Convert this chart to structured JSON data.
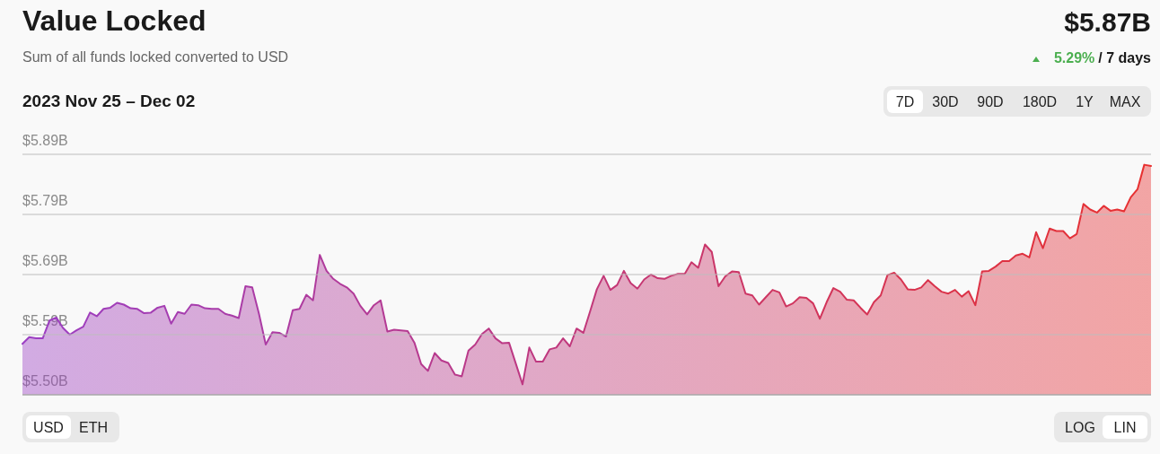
{
  "chart_data": {
    "type": "area",
    "title": "Value Locked",
    "subtitle": "Sum of all funds locked converted to USD",
    "annotations": [
      "$5.87B",
      "5.29%",
      "/ 7 days",
      "2023 Nov 25 – Dec 02",
      "7D",
      "30D",
      "90D",
      "180D",
      "1Y",
      "MAX",
      "USD",
      "ETH",
      "LOG",
      "LIN"
    ],
    "categories": [
      null,
      null,
      null,
      null,
      null,
      null,
      null,
      null,
      null,
      null,
      null,
      null,
      null,
      null,
      null,
      null,
      null,
      null,
      null,
      null,
      null,
      null,
      null,
      null,
      null,
      null,
      null,
      null,
      null,
      null,
      null,
      null,
      null,
      null,
      null,
      null,
      null,
      null,
      null,
      null,
      null,
      null,
      null,
      null,
      null,
      null,
      null,
      null,
      null,
      null,
      null,
      null,
      null,
      null,
      null,
      null,
      null,
      null,
      null,
      null,
      null,
      null,
      null,
      null,
      null,
      null,
      null,
      null,
      null,
      null,
      null,
      null,
      null,
      null,
      null,
      null,
      null,
      null,
      null,
      null,
      null,
      null,
      null,
      null,
      null,
      null,
      null,
      null,
      null,
      null,
      null,
      null,
      null,
      null,
      null,
      null,
      null,
      null,
      null,
      null,
      null,
      null,
      null,
      null,
      null,
      null,
      null,
      null,
      null,
      null,
      null,
      null,
      null,
      null,
      null,
      null,
      null,
      null,
      null,
      null,
      null,
      null,
      null,
      null,
      null,
      null,
      null,
      null,
      null,
      null,
      null,
      null,
      null,
      null,
      null,
      null,
      null,
      null,
      null,
      null,
      null,
      null,
      null,
      null,
      null,
      null,
      null,
      null,
      null,
      null,
      null,
      null,
      null,
      null,
      null,
      null,
      null,
      null,
      null,
      null,
      null,
      null,
      null,
      null,
      null,
      null,
      null,
      null
    ],
    "series": [
      {
        "color": "#e8302f",
        "values": [
          5.579,
          5.59,
          5.588,
          5.588,
          5.617,
          5.622,
          5.605,
          5.594,
          5.601,
          5.607,
          5.63,
          5.624,
          5.636,
          5.638,
          5.646,
          5.643,
          5.637,
          5.636,
          5.629,
          5.63,
          5.638,
          5.641,
          5.612,
          5.631,
          5.628,
          5.643,
          5.642,
          5.637,
          5.636,
          5.636,
          5.628,
          5.625,
          5.621,
          5.673,
          5.671,
          5.628,
          5.578,
          5.598,
          5.597,
          5.591,
          5.634,
          5.636,
          5.659,
          5.65,
          5.724,
          5.698,
          5.685,
          5.677,
          5.671,
          5.661,
          5.641,
          5.627,
          5.642,
          5.65,
          5.599,
          5.602,
          5.601,
          5.6,
          5.581,
          5.546,
          5.535,
          5.564,
          5.552,
          5.548,
          5.529,
          5.526,
          5.568,
          5.578,
          5.595,
          5.604,
          5.588,
          5.58,
          5.581,
          5.547,
          5.513,
          5.573,
          5.55,
          5.55,
          5.57,
          5.573,
          5.588,
          5.575,
          5.604,
          5.597,
          5.632,
          5.668,
          5.69,
          5.667,
          5.675,
          5.698,
          5.678,
          5.669,
          5.684,
          5.692,
          5.686,
          5.685,
          5.69,
          5.693,
          5.693,
          5.712,
          5.703,
          5.741,
          5.729,
          5.673,
          5.689,
          5.697,
          5.696,
          5.661,
          5.658,
          5.643,
          5.655,
          5.667,
          5.663,
          5.64,
          5.645,
          5.655,
          5.654,
          5.645,
          5.62,
          5.647,
          5.67,
          5.664,
          5.651,
          5.65,
          5.638,
          5.627,
          5.647,
          5.658,
          5.691,
          5.695,
          5.684,
          5.668,
          5.667,
          5.671,
          5.683,
          5.673,
          5.664,
          5.661,
          5.667,
          5.656,
          5.665,
          5.642,
          5.697,
          5.698,
          5.705,
          5.714,
          5.714,
          5.723,
          5.726,
          5.72,
          5.761,
          5.735,
          5.767,
          5.763,
          5.763,
          5.751,
          5.758,
          5.807,
          5.798,
          5.793,
          5.804,
          5.796,
          5.798,
          5.795,
          5.818,
          5.831,
          5.871,
          5.869
        ]
      }
    ],
    "ylim": [
      5.496,
      5.888
    ],
    "yticks": [
      {
        "value": 5.496,
        "label": "$5.50B"
      },
      {
        "value": 5.594,
        "label": "$5.59B"
      },
      {
        "value": 5.692,
        "label": "$5.69B"
      },
      {
        "value": 5.79,
        "label": "$5.79B"
      },
      {
        "value": 5.888,
        "label": "$5.89B"
      }
    ],
    "grid": "y",
    "marker": "none"
  }
}
